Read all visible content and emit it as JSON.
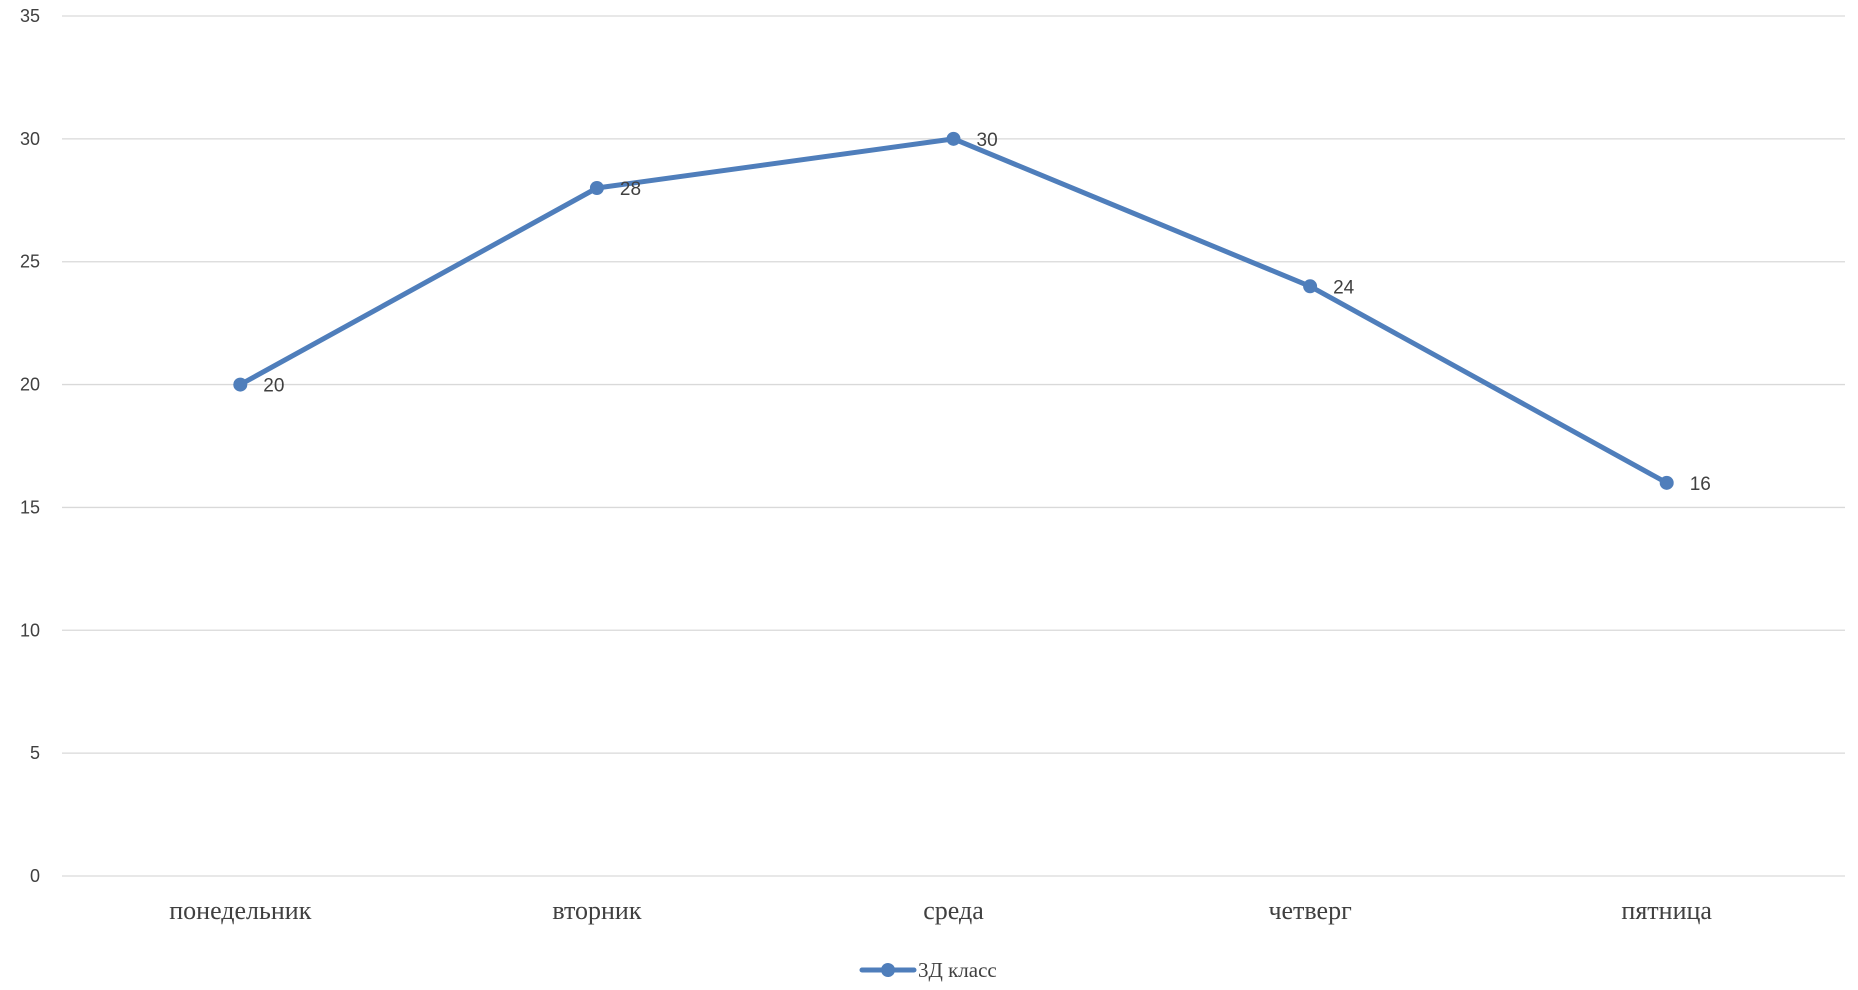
{
  "chart_data": {
    "type": "line",
    "title": "",
    "xlabel": "",
    "ylabel": "",
    "categories": [
      "понедельник",
      "вторник",
      "среда",
      "четверг",
      "пятница"
    ],
    "series": [
      {
        "name": "3Д класс",
        "values": [
          20,
          28,
          30,
          24,
          16
        ],
        "color": "#4F7EBB"
      }
    ],
    "ylim": [
      0,
      35
    ],
    "yticks": [
      0,
      5,
      10,
      15,
      20,
      25,
      30,
      35
    ],
    "grid": true,
    "data_labels": true,
    "markers": true,
    "legend_position": "bottom",
    "colors": {
      "line": "#4F7EBB",
      "grid": "#D9D9D9",
      "text": "#404040"
    }
  }
}
